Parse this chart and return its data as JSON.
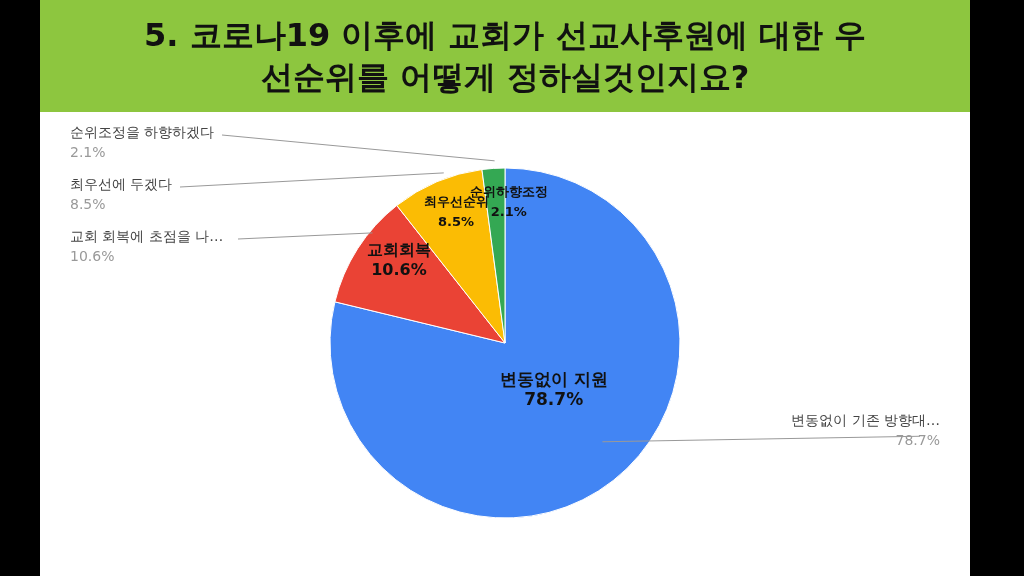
{
  "chart_data": {
    "type": "pie",
    "title": "5. 코로나19 이후에 교회가 선교사후원에 대한 우선순위를 어떻게 정하실것인지요?",
    "categories": [
      "변동없이 기존 방향대…",
      "교회 회복에 초점을 나…",
      "최우선에 두겠다",
      "순위조정을 하향하겠다"
    ],
    "values": [
      78.7,
      10.6,
      8.5,
      2.1
    ],
    "value_labels": [
      "78.7%",
      "10.6%",
      "8.5%",
      "2.1%"
    ],
    "colors": [
      "#4285f4",
      "#ea4335",
      "#fbbc04",
      "#34a853"
    ],
    "annotations": [
      "변동없이 지원",
      "교회회복",
      "최우선순위",
      "순위하향조정"
    ]
  }
}
